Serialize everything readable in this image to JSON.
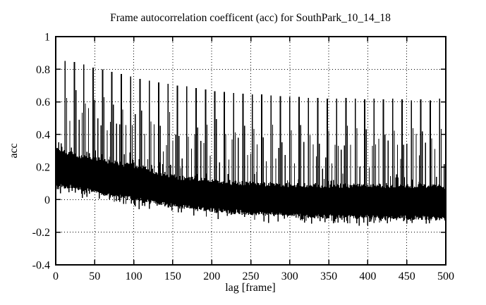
{
  "figure": {
    "background": "#ffffff",
    "frame_color": "#000000",
    "grid_color": "#000000",
    "data_color": "#000000"
  },
  "chart_data": {
    "type": "line",
    "title": "Frame autocorrelation coefficent (acc) for SouthPark_10_14_18",
    "xlabel": "lag [frame]",
    "ylabel": "acc",
    "xlim": [
      0,
      500
    ],
    "ylim": [
      -0.4,
      1
    ],
    "grid": true,
    "legend": "none",
    "xticks": {
      "values": [
        0,
        50,
        100,
        150,
        200,
        250,
        300,
        350,
        400,
        450,
        500
      ],
      "labels": [
        "0",
        "50",
        "100",
        "150",
        "200",
        "250",
        "300",
        "350",
        "400",
        "450",
        "500"
      ]
    },
    "yticks": {
      "values": [
        1,
        0.8,
        0.6,
        0.4,
        0.2,
        0,
        -0.2,
        -0.4
      ],
      "labels": [
        "1",
        "0.8",
        "0.6",
        "0.4",
        "0.2",
        "0",
        "-0.2",
        "-0.4"
      ]
    },
    "series": {
      "name": "acc",
      "description": "Frame autocorrelation: dense noisy band decaying toward slightly negative values, with tall periodic peaks every 12 frames whose height decays from ~0.85 to ~0.62",
      "main_peaks": {
        "period": 12,
        "lags": [
          12,
          24,
          36,
          48,
          60,
          72,
          84,
          96,
          108,
          120,
          132,
          144,
          156,
          168,
          180,
          192,
          204,
          216,
          228,
          240,
          252,
          264,
          276,
          288,
          300,
          312,
          324,
          336,
          348,
          360,
          372,
          384,
          396,
          408,
          420,
          432,
          444,
          456,
          468,
          480,
          492
        ],
        "heights": [
          0.85,
          0.845,
          0.83,
          0.81,
          0.8,
          0.785,
          0.77,
          0.755,
          0.74,
          0.73,
          0.72,
          0.71,
          0.7,
          0.695,
          0.685,
          0.675,
          0.665,
          0.66,
          0.655,
          0.65,
          0.645,
          0.645,
          0.64,
          0.635,
          0.63,
          0.63,
          0.625,
          0.625,
          0.62,
          0.62,
          0.625,
          0.62,
          0.615,
          0.62,
          0.615,
          0.62,
          0.615,
          0.61,
          0.615,
          0.61,
          0.62
        ]
      },
      "shoulder_peaks": {
        "offset_frames": 2,
        "fraction_range": [
          0.45,
          0.7
        ],
        "second_offset_frames": -2,
        "second_chance": 0.4,
        "second_fraction_range": [
          0.3,
          0.5
        ]
      },
      "mid_peaks": {
        "offset_frames": 6,
        "base_above_band": 0.1,
        "random_extra": 0.22
      },
      "band_top_envelope": [
        [
          0,
          0.32
        ],
        [
          15,
          0.29
        ],
        [
          30,
          0.27
        ],
        [
          50,
          0.25
        ],
        [
          70,
          0.23
        ],
        [
          90,
          0.215
        ],
        [
          110,
          0.2
        ],
        [
          125,
          0.175
        ],
        [
          140,
          0.155
        ],
        [
          160,
          0.135
        ],
        [
          180,
          0.125
        ],
        [
          200,
          0.115
        ],
        [
          225,
          0.105
        ],
        [
          250,
          0.1
        ],
        [
          280,
          0.095
        ],
        [
          310,
          0.09
        ],
        [
          350,
          0.085
        ],
        [
          400,
          0.085
        ],
        [
          450,
          0.085
        ],
        [
          500,
          0.08
        ]
      ],
      "band_bottom_envelope": [
        [
          0,
          0.09
        ],
        [
          20,
          0.075
        ],
        [
          40,
          0.055
        ],
        [
          60,
          0.04
        ],
        [
          80,
          0.02
        ],
        [
          100,
          0.005
        ],
        [
          120,
          -0.015
        ],
        [
          140,
          -0.03
        ],
        [
          160,
          -0.045
        ],
        [
          180,
          -0.055
        ],
        [
          200,
          -0.065
        ],
        [
          230,
          -0.075
        ],
        [
          260,
          -0.085
        ],
        [
          300,
          -0.095
        ],
        [
          350,
          -0.103
        ],
        [
          400,
          -0.108
        ],
        [
          450,
          -0.112
        ],
        [
          500,
          -0.115
        ]
      ],
      "noise": {
        "edge_jitter": 0.03,
        "uptick_chance": 0.1,
        "uptick_max": 0.06,
        "downtick_chance": 0.22,
        "downtick_max": 0.035,
        "seed": 1337
      }
    }
  }
}
